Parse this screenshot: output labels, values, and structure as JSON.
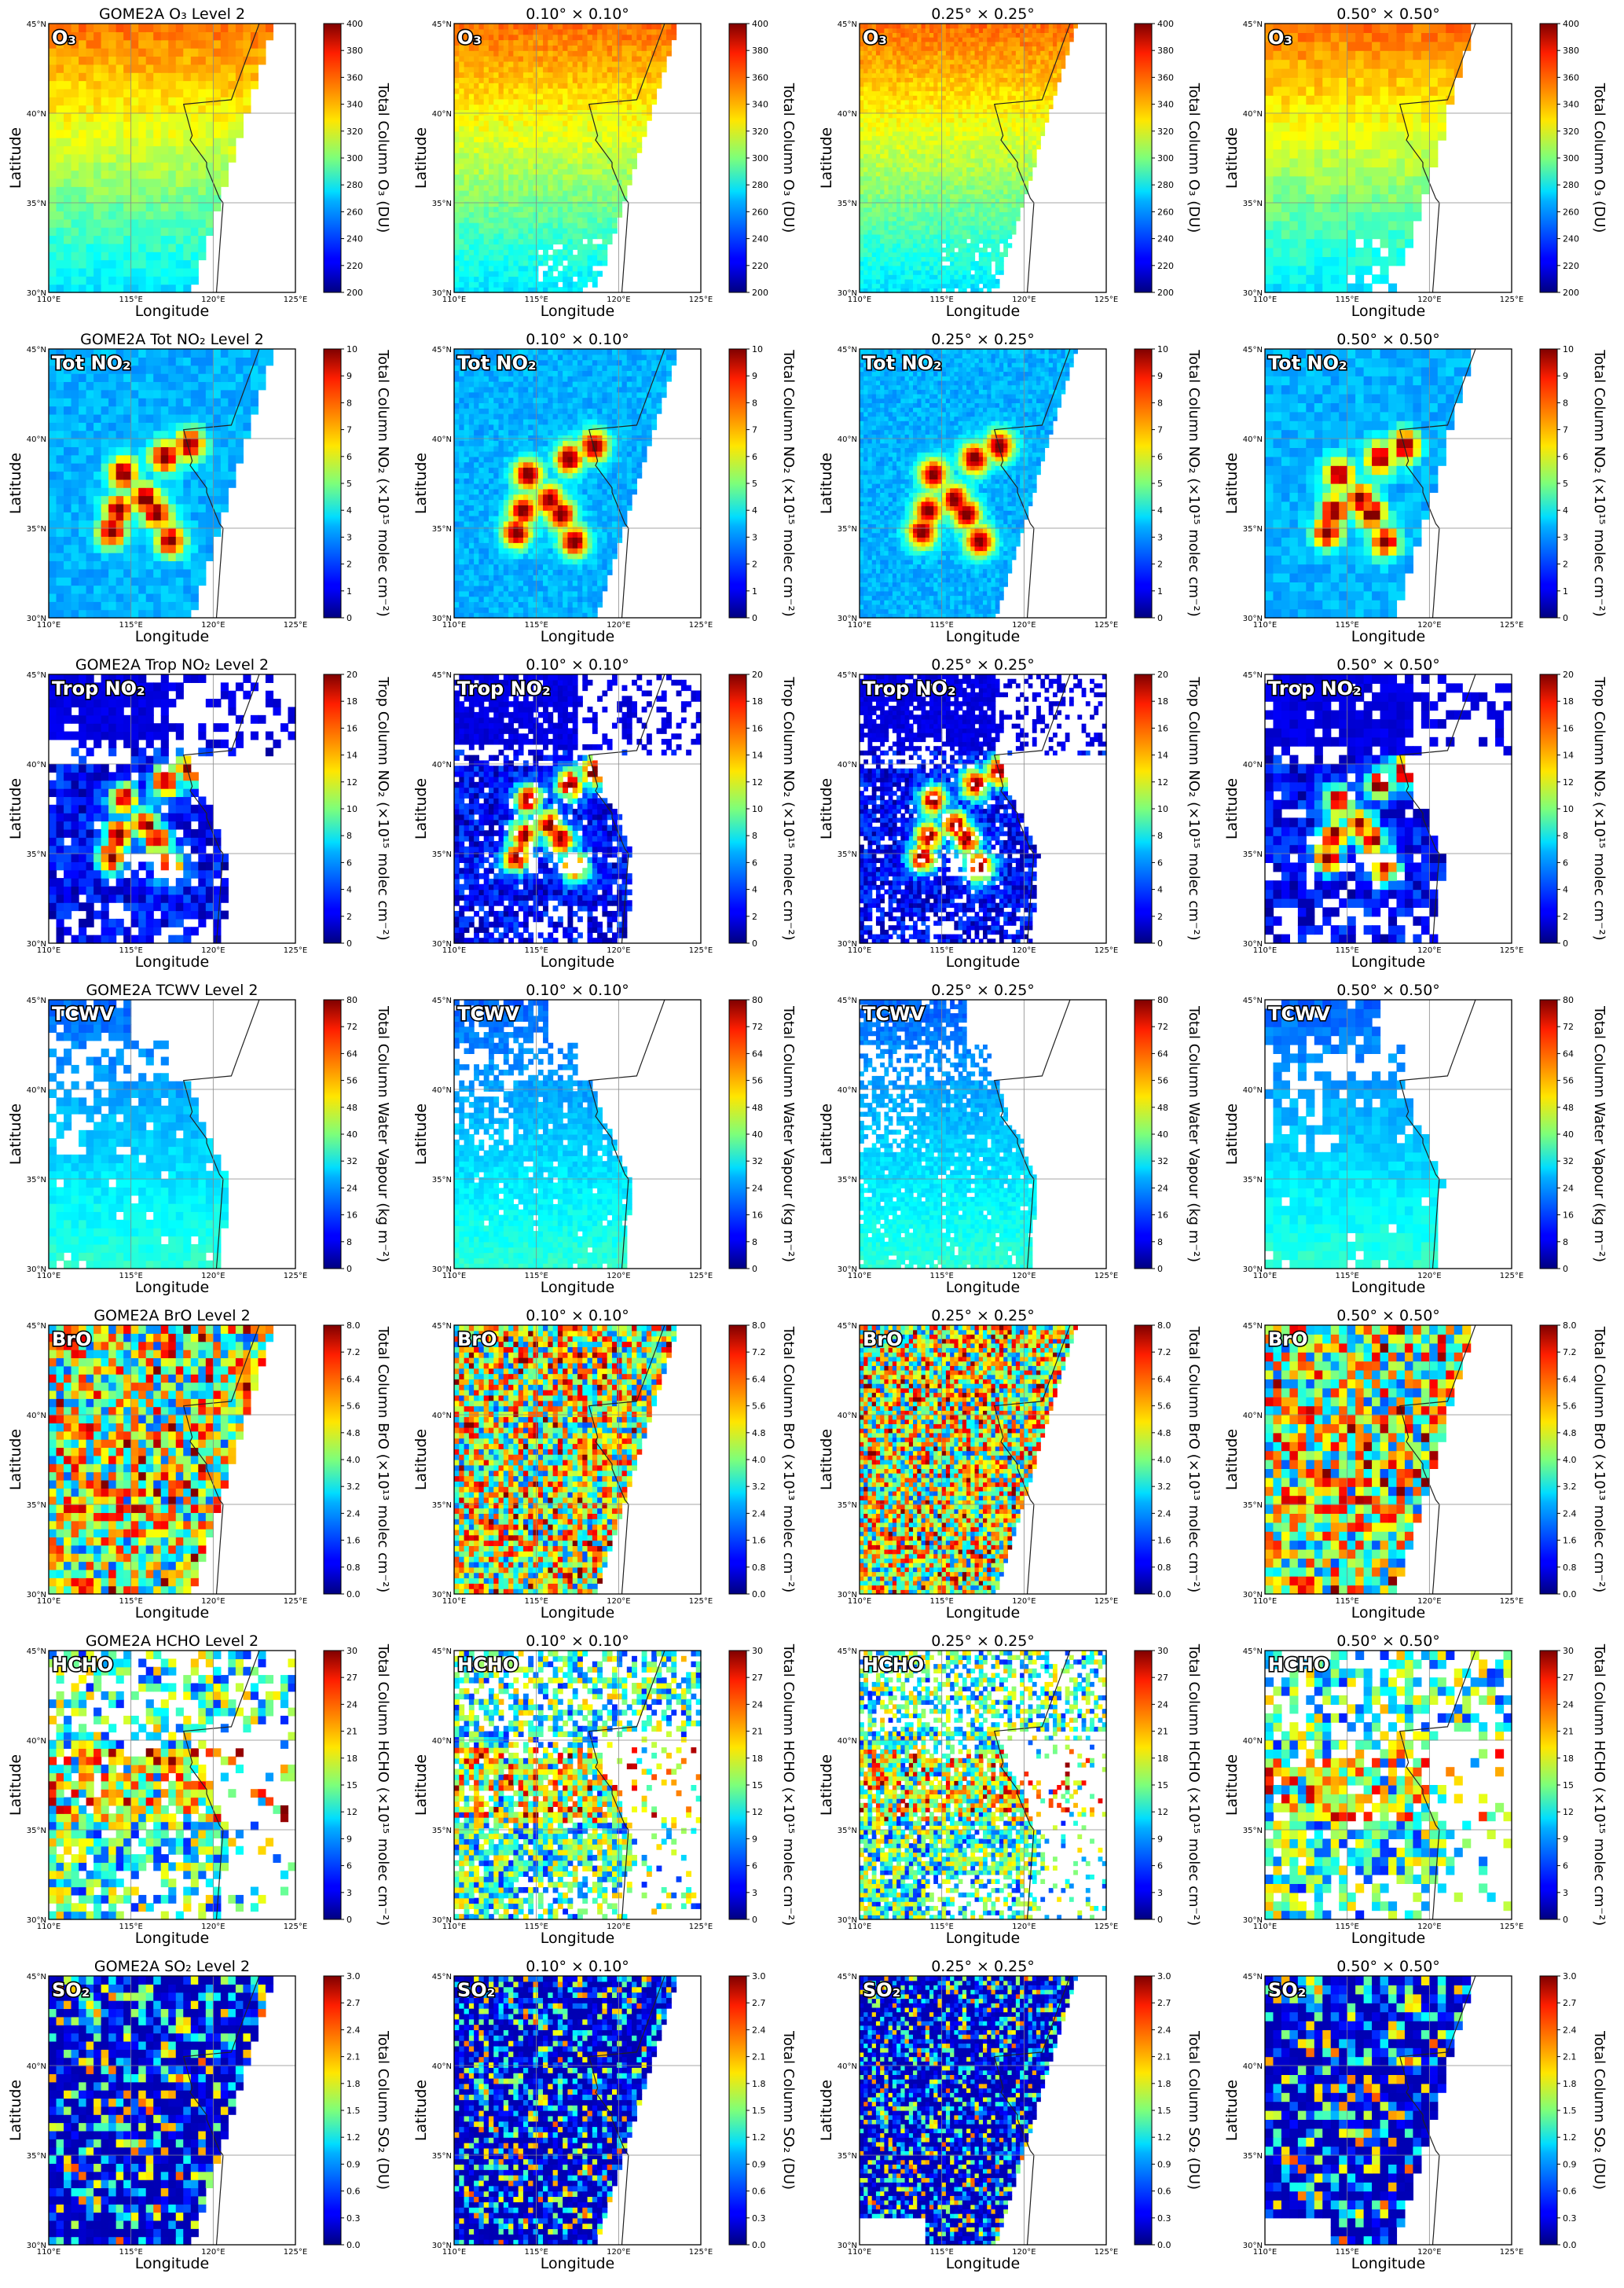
{
  "figure": {
    "columns": [
      {
        "title_suffix": "Level 2"
      },
      {
        "title": "0.10° × 0.10°"
      },
      {
        "title": "0.25° × 0.25°"
      },
      {
        "title": "0.50° × 0.50°"
      }
    ],
    "axes": {
      "xlabel": "Longitude",
      "ylabel": "Latitude",
      "xticks": [
        "110°E",
        "115°E",
        "120°E",
        "125°E"
      ],
      "yticks": [
        "30°N",
        "35°N",
        "40°N",
        "45°N"
      ],
      "xlim": [
        110,
        125
      ],
      "ylim": [
        30,
        45
      ]
    },
    "colormap": "jet",
    "rows": [
      {
        "species": "O3",
        "badge": "O₃",
        "level2_title": "GOME2A O₃ Level 2",
        "cbar_label": "Total Column O₃ (DU)",
        "cbar_ticks": [
          "200",
          "220",
          "240",
          "260",
          "280",
          "300",
          "320",
          "340",
          "360",
          "380",
          "400"
        ],
        "range": [
          200,
          400
        ],
        "swath_edge": "right-diagonal",
        "pattern": "o3"
      },
      {
        "species": "TotNO2",
        "badge": "Tot NO₂",
        "level2_title": "GOME2A Tot NO₂ Level 2",
        "cbar_label": "Total Column NO₂ (×10¹⁵ molec cm⁻²)",
        "cbar_ticks": [
          "0",
          "1",
          "2",
          "3",
          "4",
          "5",
          "6",
          "7",
          "8",
          "9",
          "10"
        ],
        "range": [
          0,
          10
        ],
        "swath_edge": "right-diagonal",
        "pattern": "no2"
      },
      {
        "species": "TropNO2",
        "badge": "Trop NO₂",
        "level2_title": "GOME2A Trop NO₂ Level 2",
        "cbar_label": "Trop Column NO₂ (×10¹⁵ molec cm⁻²)",
        "cbar_ticks": [
          "0",
          "2",
          "4",
          "6",
          "8",
          "10",
          "12",
          "14",
          "16",
          "18",
          "20"
        ],
        "range": [
          0,
          20
        ],
        "swath_edge": "none",
        "pattern": "tropno2"
      },
      {
        "species": "TCWV",
        "badge": "TCWV",
        "level2_title": "GOME2A TCWV Level 2",
        "cbar_label": "Total Column Water Vapour (kg m⁻²)",
        "cbar_ticks": [
          "0",
          "8",
          "16",
          "24",
          "32",
          "40",
          "48",
          "56",
          "64",
          "72",
          "80"
        ],
        "range": [
          0,
          80
        ],
        "swath_edge": "none",
        "pattern": "tcwv"
      },
      {
        "species": "BrO",
        "badge": "BrO",
        "level2_title": "GOME2A BrO Level 2",
        "cbar_label": "Total Column BrO (×10¹³ molec cm⁻²)",
        "cbar_ticks": [
          "0.0",
          "0.8",
          "1.6",
          "2.4",
          "3.2",
          "4.0",
          "4.8",
          "5.6",
          "6.4",
          "7.2",
          "8.0"
        ],
        "range": [
          0,
          8
        ],
        "swath_edge": "right-diagonal",
        "pattern": "bro"
      },
      {
        "species": "HCHO",
        "badge": "HCHO",
        "level2_title": "GOME2A HCHO Level 2",
        "cbar_label": "Total Column HCHO (×10¹⁵ molec cm⁻²)",
        "cbar_ticks": [
          "0",
          "3",
          "6",
          "9",
          "12",
          "15",
          "18",
          "21",
          "24",
          "27",
          "30"
        ],
        "range": [
          0,
          30
        ],
        "swath_edge": "none",
        "pattern": "hcho"
      },
      {
        "species": "SO2",
        "badge": "SO₂",
        "level2_title": "GOME2A SO₂ Level 2",
        "cbar_label": "Total Column SO₂ (DU)",
        "cbar_ticks": [
          "0.0",
          "0.3",
          "0.6",
          "0.9",
          "1.2",
          "1.5",
          "1.8",
          "2.1",
          "2.4",
          "2.7",
          "3.0"
        ],
        "range": [
          0,
          3
        ],
        "swath_edge": "right-diagonal",
        "pattern": "so2"
      }
    ]
  }
}
